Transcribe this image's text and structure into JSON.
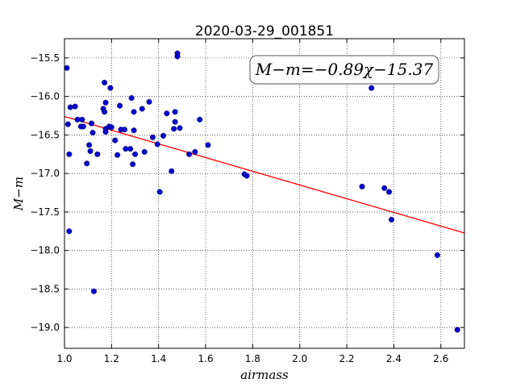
{
  "chart_data": {
    "type": "scatter",
    "title": "2020-03-29_001851",
    "xlabel": "airmass",
    "ylabel": "M−m",
    "xlim": [
      1.0,
      2.7
    ],
    "ylim": [
      -19.27,
      -15.25
    ],
    "y_inverted": true,
    "grid": true,
    "grid_style": "dotted",
    "xticks": [
      1.0,
      1.2,
      1.4,
      1.6,
      1.8,
      2.0,
      2.2,
      2.4,
      2.6
    ],
    "xtick_labels": [
      "1.0",
      "1.2",
      "1.4",
      "1.6",
      "1.8",
      "2.0",
      "2.2",
      "2.4",
      "2.6"
    ],
    "yticks": [
      -15.5,
      -16.0,
      -16.5,
      -17.0,
      -17.5,
      -18.0,
      -18.5,
      -19.0
    ],
    "ytick_labels": [
      "−15.5",
      "−16.0",
      "−16.5",
      "−17.0",
      "−17.5",
      "−18.0",
      "−18.5",
      "−19.0"
    ],
    "annotation": "M−m=−0.89χ−15.37",
    "fit": {
      "slope": -0.89,
      "intercept": -15.37,
      "color": "#ff0000"
    },
    "point_color": "#0000cc",
    "points": [
      [
        1.01,
        -15.63
      ],
      [
        1.015,
        -16.36
      ],
      [
        1.02,
        -16.75
      ],
      [
        1.02,
        -17.75
      ],
      [
        1.025,
        -16.14
      ],
      [
        1.045,
        -16.13
      ],
      [
        1.055,
        -16.3
      ],
      [
        1.07,
        -16.39
      ],
      [
        1.075,
        -16.3
      ],
      [
        1.08,
        -16.39
      ],
      [
        1.095,
        -16.87
      ],
      [
        1.105,
        -16.63
      ],
      [
        1.11,
        -16.71
      ],
      [
        1.115,
        -16.35
      ],
      [
        1.12,
        -16.47
      ],
      [
        1.125,
        -18.53
      ],
      [
        1.14,
        -16.75
      ],
      [
        1.165,
        -16.16
      ],
      [
        1.17,
        -15.82
      ],
      [
        1.17,
        -16.2
      ],
      [
        1.175,
        -16.08
      ],
      [
        1.175,
        -16.42
      ],
      [
        1.175,
        -16.46
      ],
      [
        1.19,
        -16.39
      ],
      [
        1.195,
        -15.89
      ],
      [
        1.2,
        -16.4
      ],
      [
        1.215,
        -16.57
      ],
      [
        1.225,
        -16.76
      ],
      [
        1.235,
        -16.12
      ],
      [
        1.24,
        -16.43
      ],
      [
        1.255,
        -16.43
      ],
      [
        1.26,
        -16.68
      ],
      [
        1.28,
        -16.68
      ],
      [
        1.285,
        -16.02
      ],
      [
        1.29,
        -16.88
      ],
      [
        1.295,
        -16.2
      ],
      [
        1.295,
        -16.44
      ],
      [
        1.3,
        -16.75
      ],
      [
        1.33,
        -16.16
      ],
      [
        1.34,
        -16.72
      ],
      [
        1.36,
        -16.07
      ],
      [
        1.375,
        -16.53
      ],
      [
        1.395,
        -16.62
      ],
      [
        1.405,
        -17.24
      ],
      [
        1.42,
        -16.51
      ],
      [
        1.435,
        -16.22
      ],
      [
        1.455,
        -16.97
      ],
      [
        1.465,
        -16.42
      ],
      [
        1.47,
        -16.2
      ],
      [
        1.47,
        -16.33
      ],
      [
        1.48,
        -15.44
      ],
      [
        1.48,
        -15.48
      ],
      [
        1.49,
        -16.41
      ],
      [
        1.53,
        -16.75
      ],
      [
        1.555,
        -16.72
      ],
      [
        1.575,
        -16.3
      ],
      [
        1.61,
        -16.63
      ],
      [
        1.765,
        -17.01
      ],
      [
        1.775,
        -17.03
      ],
      [
        2.265,
        -17.17
      ],
      [
        2.305,
        -15.89
      ],
      [
        2.36,
        -17.19
      ],
      [
        2.38,
        -17.24
      ],
      [
        2.39,
        -17.6
      ],
      [
        2.585,
        -18.06
      ],
      [
        2.67,
        -19.03
      ]
    ]
  }
}
